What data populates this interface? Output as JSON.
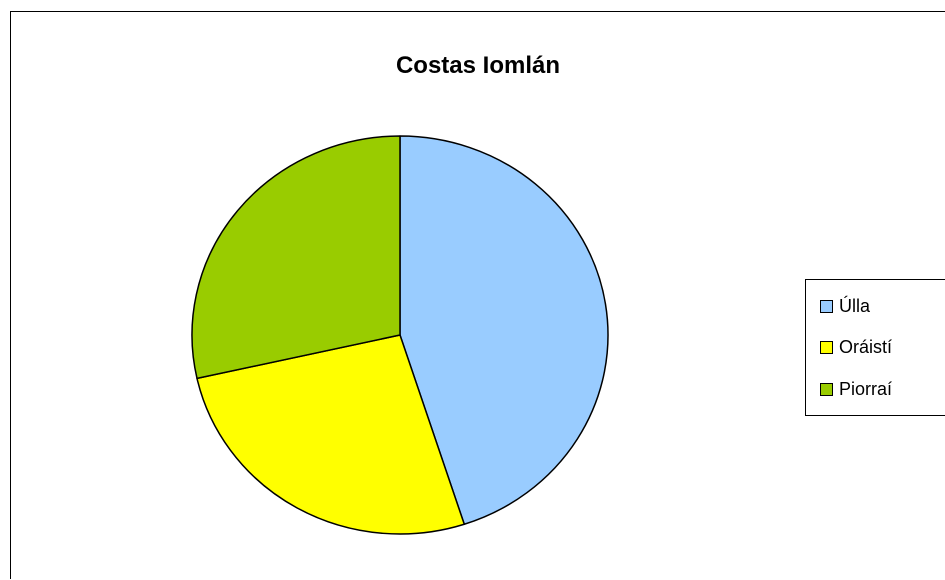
{
  "chart_data": {
    "type": "pie",
    "title": "Costas Iomlán",
    "categories": [
      "Úlla",
      "Oráistí",
      "Piorraí"
    ],
    "values": [
      45,
      26.5,
      28.5
    ],
    "colors": [
      "#99CCFF",
      "#FFFF00",
      "#99CC00"
    ],
    "legend_position": "right",
    "start_angle": "top",
    "direction": "clockwise"
  }
}
